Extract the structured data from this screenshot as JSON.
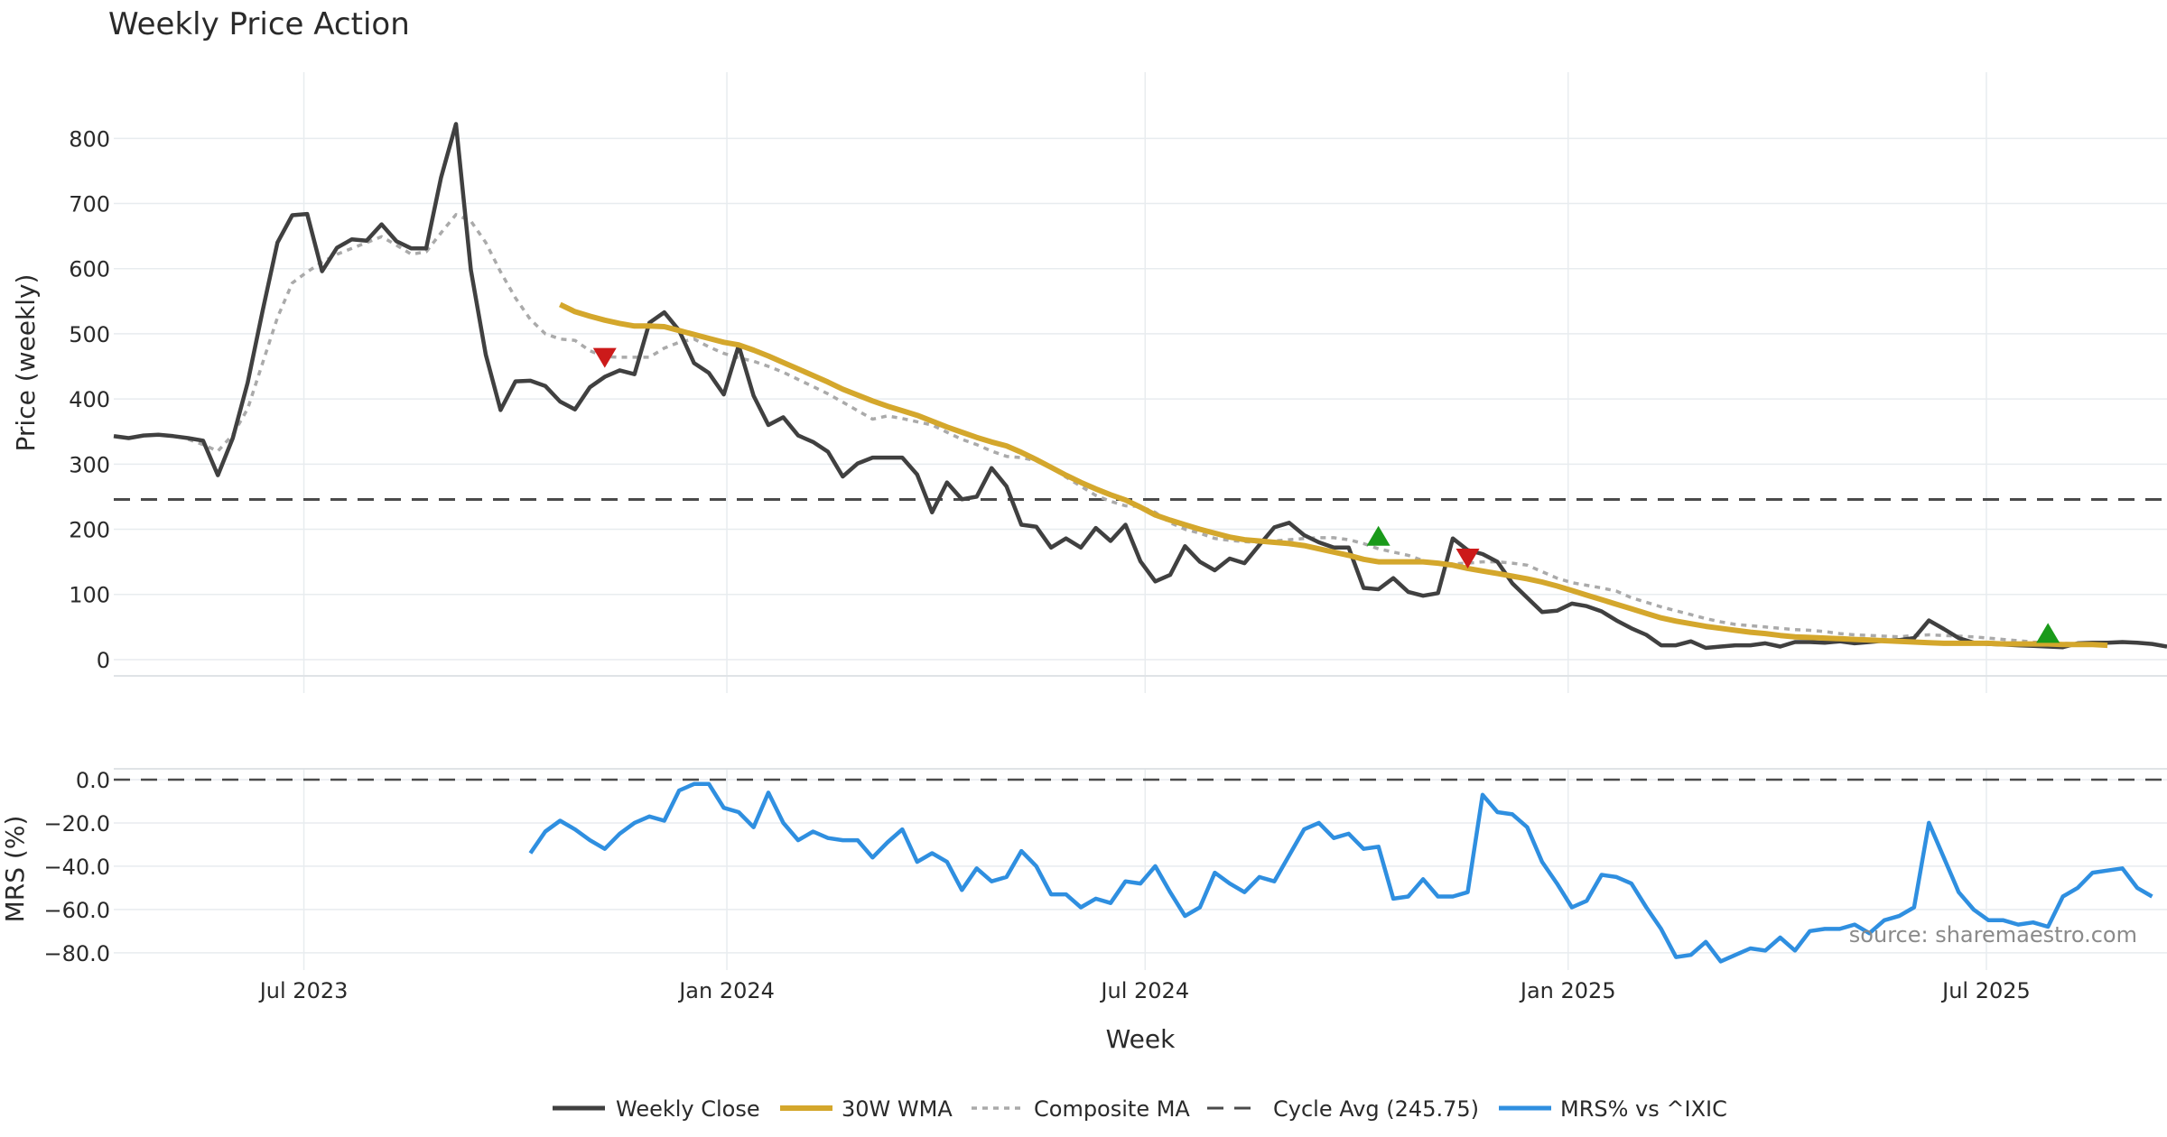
{
  "chart_data": {
    "type": "line",
    "title": "Weekly Price Action",
    "source": "source: sharemaestro.com",
    "xlabel": "Week",
    "x_ticks": [
      "Jul 2023",
      "Jan 2024",
      "Jul 2024",
      "Jan 2025",
      "Jul 2025"
    ],
    "price_panel": {
      "ylabel": "Price (weekly)",
      "ylim": [
        -25,
        860
      ],
      "y_ticks": [
        "0",
        "100",
        "200",
        "300",
        "400",
        "500",
        "600",
        "700",
        "800"
      ],
      "cycle_avg": 245.75
    },
    "mrs_panel": {
      "ylabel": "MRS (%)",
      "ylim": [
        -88,
        5
      ],
      "y_ticks": [
        "0.0",
        "−20.0",
        "−40.0",
        "−60.0",
        "−80.0"
      ],
      "zero_line": 0
    },
    "legend": [
      "Weekly Close",
      "30W WMA",
      "Composite MA",
      "Cycle Avg (245.75)",
      "MRS% vs ^IXIC"
    ],
    "colors": {
      "weekly_close": "#404040",
      "wma": "#d4a72c",
      "composite": "#aaaaaa",
      "cycle_avg": "#4a4a4a",
      "mrs": "#2f8fe0",
      "buy_marker": "#1a9a1a",
      "sell_marker": "#cc1a1a",
      "grid": "#e8ecef"
    },
    "series": [
      {
        "name": "Weekly Close",
        "values": [
          343,
          340,
          344,
          345,
          343,
          340,
          336,
          283,
          340,
          425,
          535,
          640,
          682,
          684,
          596,
          632,
          645,
          643,
          668,
          642,
          631,
          631,
          740,
          822,
          598,
          468,
          383,
          427,
          428,
          420,
          396,
          384,
          418,
          434,
          444,
          438,
          517,
          533,
          505,
          455,
          440,
          407,
          482,
          405,
          360,
          372,
          344,
          334,
          319,
          281,
          301,
          310,
          310,
          310,
          284,
          226,
          272,
          246,
          250,
          294,
          266,
          207,
          204,
          172,
          186,
          172,
          202,
          182,
          207,
          151,
          120,
          130,
          174,
          150,
          137,
          155,
          148,
          176,
          203,
          210,
          191,
          180,
          172,
          172,
          110,
          108,
          125,
          104,
          98,
          102,
          186,
          168,
          162,
          150,
          117,
          95,
          73,
          75,
          86,
          82,
          74,
          60,
          48,
          38,
          22,
          22,
          28,
          18,
          20,
          22,
          22,
          25,
          20,
          27,
          27,
          26,
          28,
          25,
          27,
          29,
          30,
          33,
          60,
          47,
          33,
          26,
          24,
          23,
          22,
          21,
          20,
          19,
          25,
          26,
          26,
          27,
          26,
          24,
          20
        ]
      },
      {
        "name": "30W WMA",
        "start_week": 30,
        "values": [
          545,
          534,
          527,
          521,
          516,
          512,
          512,
          511,
          505,
          499,
          493,
          487,
          483,
          475,
          466,
          456,
          446,
          436,
          426,
          415,
          406,
          397,
          389,
          382,
          375,
          366,
          357,
          349,
          341,
          334,
          328,
          318,
          307,
          295,
          283,
          272,
          262,
          253,
          245,
          234,
          222,
          214,
          207,
          200,
          194,
          188,
          184,
          182,
          180,
          178,
          175,
          170,
          165,
          160,
          154,
          150,
          150,
          150,
          150,
          148,
          145,
          140,
          136,
          132,
          128,
          124,
          119,
          113,
          106,
          99,
          92,
          85,
          78,
          71,
          64,
          59,
          55,
          51,
          48,
          45,
          42,
          40,
          37,
          35,
          34,
          33,
          32,
          31,
          30,
          29,
          28,
          27,
          26,
          25,
          25,
          25,
          25,
          24,
          24,
          24,
          24,
          23,
          23,
          23,
          22
        ]
      },
      {
        "name": "Composite MA",
        "start_week": 5,
        "values": [
          338,
          330,
          320,
          345,
          385,
          455,
          525,
          578,
          595,
          610,
          622,
          631,
          640,
          649,
          636,
          622,
          626,
          655,
          683,
          673,
          640,
          595,
          555,
          522,
          500,
          492,
          490,
          474,
          465,
          464,
          464,
          464,
          478,
          487,
          492,
          480,
          470,
          463,
          458,
          450,
          441,
          430,
          419,
          408,
          395,
          382,
          369,
          374,
          370,
          365,
          360,
          349,
          338,
          330,
          320,
          312,
          310,
          305,
          295,
          280,
          266,
          252,
          243,
          236,
          235,
          226,
          210,
          200,
          194,
          186,
          183,
          181,
          180,
          182,
          184,
          186,
          187,
          187,
          184,
          178,
          170,
          165,
          160,
          152,
          148,
          147,
          148,
          150,
          150,
          148,
          145,
          135,
          125,
          118,
          114,
          110,
          105,
          95,
          88,
          81,
          75,
          69,
          63,
          58,
          54,
          52,
          50,
          48,
          46,
          45,
          43,
          40,
          38,
          37,
          36,
          35,
          37,
          38,
          37,
          36,
          35,
          33,
          31,
          29,
          27,
          26,
          25,
          24,
          24
        ]
      },
      {
        "name": "MRS% vs ^IXIC",
        "start_week": 28,
        "values": [
          -34,
          -24,
          -19,
          -23,
          -28,
          -32,
          -25,
          -20,
          -17,
          -19,
          -5,
          -2,
          -2,
          -13,
          -15,
          -22,
          -6,
          -20,
          -28,
          -24,
          -27,
          -28,
          -28,
          -36,
          -29,
          -23,
          -38,
          -34,
          -38,
          -51,
          -41,
          -47,
          -45,
          -33,
          -40,
          -53,
          -53,
          -59,
          -55,
          -57,
          -47,
          -48,
          -40,
          -52,
          -63,
          -59,
          -43,
          -48,
          -52,
          -45,
          -47,
          -35,
          -23,
          -20,
          -27,
          -25,
          -32,
          -31,
          -55,
          -54,
          -46,
          -54,
          -54,
          -52,
          -7,
          -15,
          -16,
          -22,
          -38,
          -48,
          -59,
          -56,
          -44,
          -45,
          -48,
          -59,
          -69,
          -82,
          -81,
          -75,
          -84,
          -81,
          -78,
          -79,
          -73,
          -79,
          -70,
          -69,
          -69,
          -67,
          -71,
          -65,
          -63,
          -59,
          -20,
          -36,
          -52,
          -60,
          -65,
          -65,
          -67,
          -66,
          -68,
          -54,
          -50,
          -43,
          -42,
          -41,
          -50,
          -54
        ]
      }
    ],
    "signals": [
      {
        "type": "sell",
        "week": 33,
        "value": 463
      },
      {
        "type": "buy",
        "week": 85,
        "value": 190
      },
      {
        "type": "sell",
        "week": 91,
        "value": 155
      },
      {
        "type": "buy",
        "week": 130,
        "value": 41
      }
    ]
  }
}
